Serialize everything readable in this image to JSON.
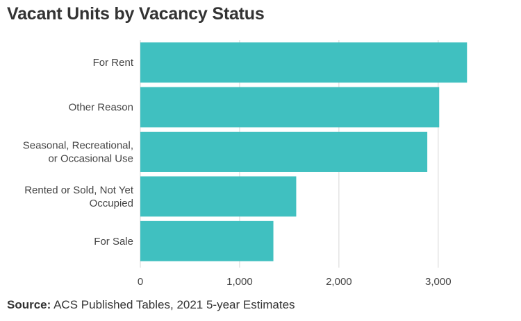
{
  "title": "Vacant Units by Vacancy Status",
  "source": {
    "label": "Source:",
    "text": "ACS Published Tables, 2021 5-year Estimates"
  },
  "colors": {
    "bar": "#40c0c0",
    "grid": "#d6d6d6",
    "text": "#444444"
  },
  "chart_data": {
    "type": "bar",
    "orientation": "horizontal",
    "categories": [
      "For Rent",
      "Other Reason",
      "Seasonal, Recreational, or Occasional Use",
      "Rented or Sold, Not Yet Occupied",
      "For Sale"
    ],
    "category_lines": [
      [
        "For Rent"
      ],
      [
        "Other Reason"
      ],
      [
        "Seasonal, Recreational,",
        "or Occasional Use"
      ],
      [
        "Rented or Sold, Not Yet",
        "Occupied"
      ],
      [
        "For Sale"
      ]
    ],
    "values": [
      3290,
      3010,
      2890,
      1570,
      1340
    ],
    "xlim": [
      0,
      3400
    ],
    "ticks": [
      0,
      1000,
      2000,
      3000
    ],
    "tick_labels": [
      "0",
      "1,000",
      "2,000",
      "3,000"
    ],
    "grid": true,
    "title": "Vacant Units by Vacancy Status",
    "xlabel": "",
    "ylabel": ""
  }
}
